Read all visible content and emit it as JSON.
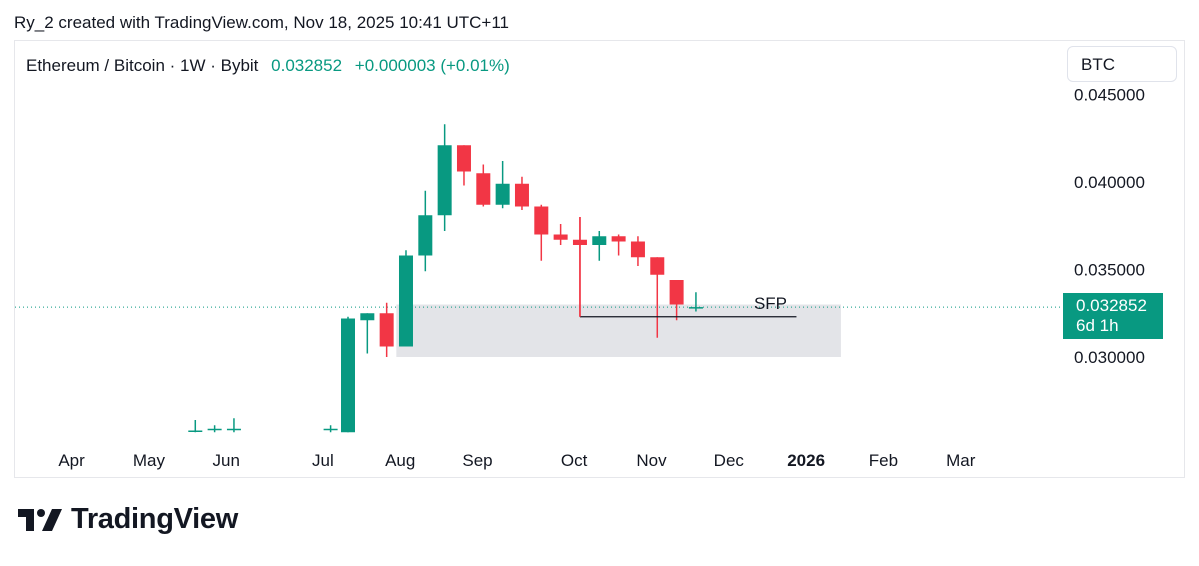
{
  "credit": "Ry_2 created with TradingView.com, Nov 18, 2025 10:41 UTC+11",
  "header": {
    "symbol": "Ethereum / Bitcoin · 1W · Bybit",
    "price": "0.032852",
    "change": "+0.000003 (+0.01%)"
  },
  "currency_button": "BTC",
  "price_tag": {
    "price": "0.032852",
    "countdown": "6d 1h"
  },
  "logo_text": "TradingView",
  "colors": {
    "up": "#089981",
    "down": "#f23645",
    "zone": "#e3e4e8",
    "accent": "#089981"
  },
  "chart_data": {
    "type": "candlestick",
    "title": "Ethereum / Bitcoin · 1W · Bybit",
    "ylim": [
      0.0257,
      0.0454
    ],
    "y_ticks": [
      {
        "value": 0.045,
        "label": "0.045000"
      },
      {
        "value": 0.04,
        "label": "0.040000"
      },
      {
        "value": 0.035,
        "label": "0.035000"
      },
      {
        "value": 0.03,
        "label": "0.030000"
      }
    ],
    "x_ticks": [
      {
        "week": -14.3,
        "label": "Apr",
        "bold": false
      },
      {
        "week": -10.3,
        "label": "May",
        "bold": false
      },
      {
        "week": -6.3,
        "label": "Jun",
        "bold": false
      },
      {
        "week": -1.3,
        "label": "Jul",
        "bold": false
      },
      {
        "week": 2.7,
        "label": "Aug",
        "bold": false
      },
      {
        "week": 6.7,
        "label": "Sep",
        "bold": false
      },
      {
        "week": 11.7,
        "label": "Oct",
        "bold": false
      },
      {
        "week": 15.7,
        "label": "Nov",
        "bold": false
      },
      {
        "week": 19.7,
        "label": "Dec",
        "bold": false
      },
      {
        "week": 23.7,
        "label": "2026",
        "bold": true
      },
      {
        "week": 27.7,
        "label": "Feb",
        "bold": false
      },
      {
        "week": 31.7,
        "label": "Mar",
        "bold": false
      }
    ],
    "candles": [
      {
        "w": -7.9,
        "o": 0.0258,
        "h": 0.0264,
        "l": 0.0257,
        "c": 0.0258
      },
      {
        "w": -6.9,
        "o": 0.0259,
        "h": 0.0261,
        "l": 0.0257,
        "c": 0.0259
      },
      {
        "w": -5.9,
        "o": 0.0259,
        "h": 0.0265,
        "l": 0.0257,
        "c": 0.0259
      },
      {
        "w": -0.9,
        "o": 0.0259,
        "h": 0.0261,
        "l": 0.0257,
        "c": 0.0259
      },
      {
        "w": 0,
        "o": 0.0257,
        "h": 0.0323,
        "l": 0.0257,
        "c": 0.0322
      },
      {
        "w": 1,
        "o": 0.0321,
        "h": 0.0325,
        "l": 0.0302,
        "c": 0.0325
      },
      {
        "w": 2,
        "o": 0.0325,
        "h": 0.0331,
        "l": 0.03,
        "c": 0.0306
      },
      {
        "w": 3,
        "o": 0.0306,
        "h": 0.0361,
        "l": 0.0306,
        "c": 0.0358
      },
      {
        "w": 4,
        "o": 0.0358,
        "h": 0.0395,
        "l": 0.0349,
        "c": 0.0381
      },
      {
        "w": 5,
        "o": 0.0381,
        "h": 0.0433,
        "l": 0.0372,
        "c": 0.0421
      },
      {
        "w": 6,
        "o": 0.0421,
        "h": 0.0421,
        "l": 0.0398,
        "c": 0.0406
      },
      {
        "w": 7,
        "o": 0.0405,
        "h": 0.041,
        "l": 0.0386,
        "c": 0.0387
      },
      {
        "w": 8,
        "o": 0.0387,
        "h": 0.0412,
        "l": 0.0385,
        "c": 0.0399
      },
      {
        "w": 9,
        "o": 0.0399,
        "h": 0.0403,
        "l": 0.0384,
        "c": 0.0386
      },
      {
        "w": 10,
        "o": 0.0386,
        "h": 0.0387,
        "l": 0.0355,
        "c": 0.037
      },
      {
        "w": 11,
        "o": 0.037,
        "h": 0.0376,
        "l": 0.0364,
        "c": 0.0367
      },
      {
        "w": 12,
        "o": 0.0367,
        "h": 0.038,
        "l": 0.0323,
        "c": 0.0364
      },
      {
        "w": 13,
        "o": 0.0364,
        "h": 0.0372,
        "l": 0.0355,
        "c": 0.0369
      },
      {
        "w": 14,
        "o": 0.0369,
        "h": 0.037,
        "l": 0.0358,
        "c": 0.0366
      },
      {
        "w": 15,
        "o": 0.0366,
        "h": 0.0369,
        "l": 0.0352,
        "c": 0.0357
      },
      {
        "w": 16,
        "o": 0.0357,
        "h": 0.0357,
        "l": 0.0311,
        "c": 0.0347
      },
      {
        "w": 17,
        "o": 0.0344,
        "h": 0.0344,
        "l": 0.0321,
        "c": 0.033
      },
      {
        "w": 18,
        "o": 0.032849,
        "h": 0.0337,
        "l": 0.0326,
        "c": 0.032852
      }
    ],
    "zone": {
      "w_start": 2.5,
      "w_end": 25.5,
      "y_top": 0.033,
      "y_bottom": 0.03
    },
    "sfp_line": {
      "w_start": 12,
      "w_end": 23.2,
      "value": 0.0323,
      "label": "SFP"
    },
    "last_price": 0.032852
  }
}
